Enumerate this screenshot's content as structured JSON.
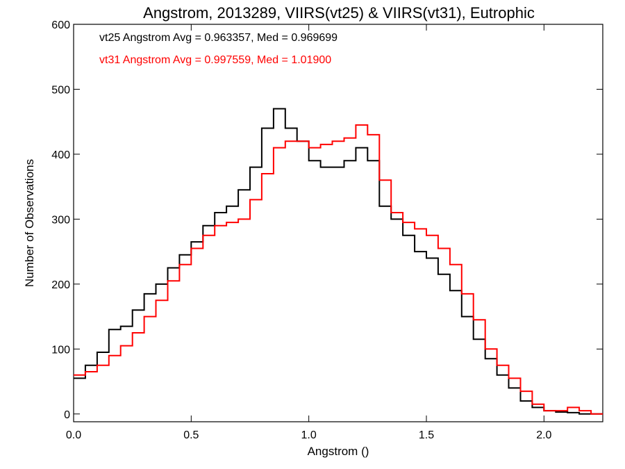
{
  "chart_data": {
    "type": "line",
    "title": "Angstrom, 2013289, VIIRS(vt25) & VIIRS(vt31), Eutrophic",
    "xlabel": "Angstrom ()",
    "ylabel": "Number of Observations",
    "xlim": [
      0.0,
      2.25
    ],
    "ylim": [
      0,
      600
    ],
    "x_ticks": [
      "0.0",
      "0.5",
      "1.0",
      "1.5",
      "2.0"
    ],
    "y_ticks": [
      "0",
      "100",
      "200",
      "300",
      "400",
      "500",
      "600"
    ],
    "grid": false,
    "step": true,
    "annotations": [
      {
        "text": "vt25 Angstrom Avg = 0.963357, Med = 0.969699",
        "color": "#000000"
      },
      {
        "text": "vt31 Angstrom Avg = 0.997559, Med = 1.01900",
        "color": "#ff0000"
      }
    ],
    "x": [
      0.0,
      0.05,
      0.1,
      0.15,
      0.2,
      0.25,
      0.3,
      0.35,
      0.4,
      0.45,
      0.5,
      0.55,
      0.6,
      0.65,
      0.7,
      0.75,
      0.8,
      0.85,
      0.9,
      0.95,
      1.0,
      1.05,
      1.1,
      1.15,
      1.2,
      1.25,
      1.3,
      1.35,
      1.4,
      1.45,
      1.5,
      1.55,
      1.6,
      1.65,
      1.7,
      1.75,
      1.8,
      1.85,
      1.9,
      1.95,
      2.0,
      2.05,
      2.1,
      2.15,
      2.2,
      2.25
    ],
    "series": [
      {
        "name": "vt25",
        "color": "#000000",
        "values": [
          55,
          75,
          95,
          130,
          135,
          160,
          185,
          200,
          225,
          245,
          265,
          290,
          310,
          320,
          345,
          380,
          440,
          470,
          440,
          420,
          390,
          380,
          380,
          390,
          410,
          390,
          320,
          300,
          275,
          250,
          240,
          215,
          190,
          150,
          115,
          85,
          60,
          40,
          20,
          10,
          5,
          3,
          2,
          0,
          0,
          0
        ]
      },
      {
        "name": "vt31",
        "color": "#ff0000",
        "values": [
          60,
          65,
          75,
          90,
          105,
          125,
          150,
          175,
          205,
          230,
          255,
          275,
          290,
          295,
          300,
          330,
          370,
          410,
          420,
          420,
          410,
          415,
          420,
          425,
          445,
          430,
          360,
          310,
          295,
          285,
          275,
          255,
          230,
          185,
          145,
          100,
          75,
          55,
          35,
          15,
          5,
          5,
          10,
          5,
          0,
          0
        ]
      }
    ]
  }
}
